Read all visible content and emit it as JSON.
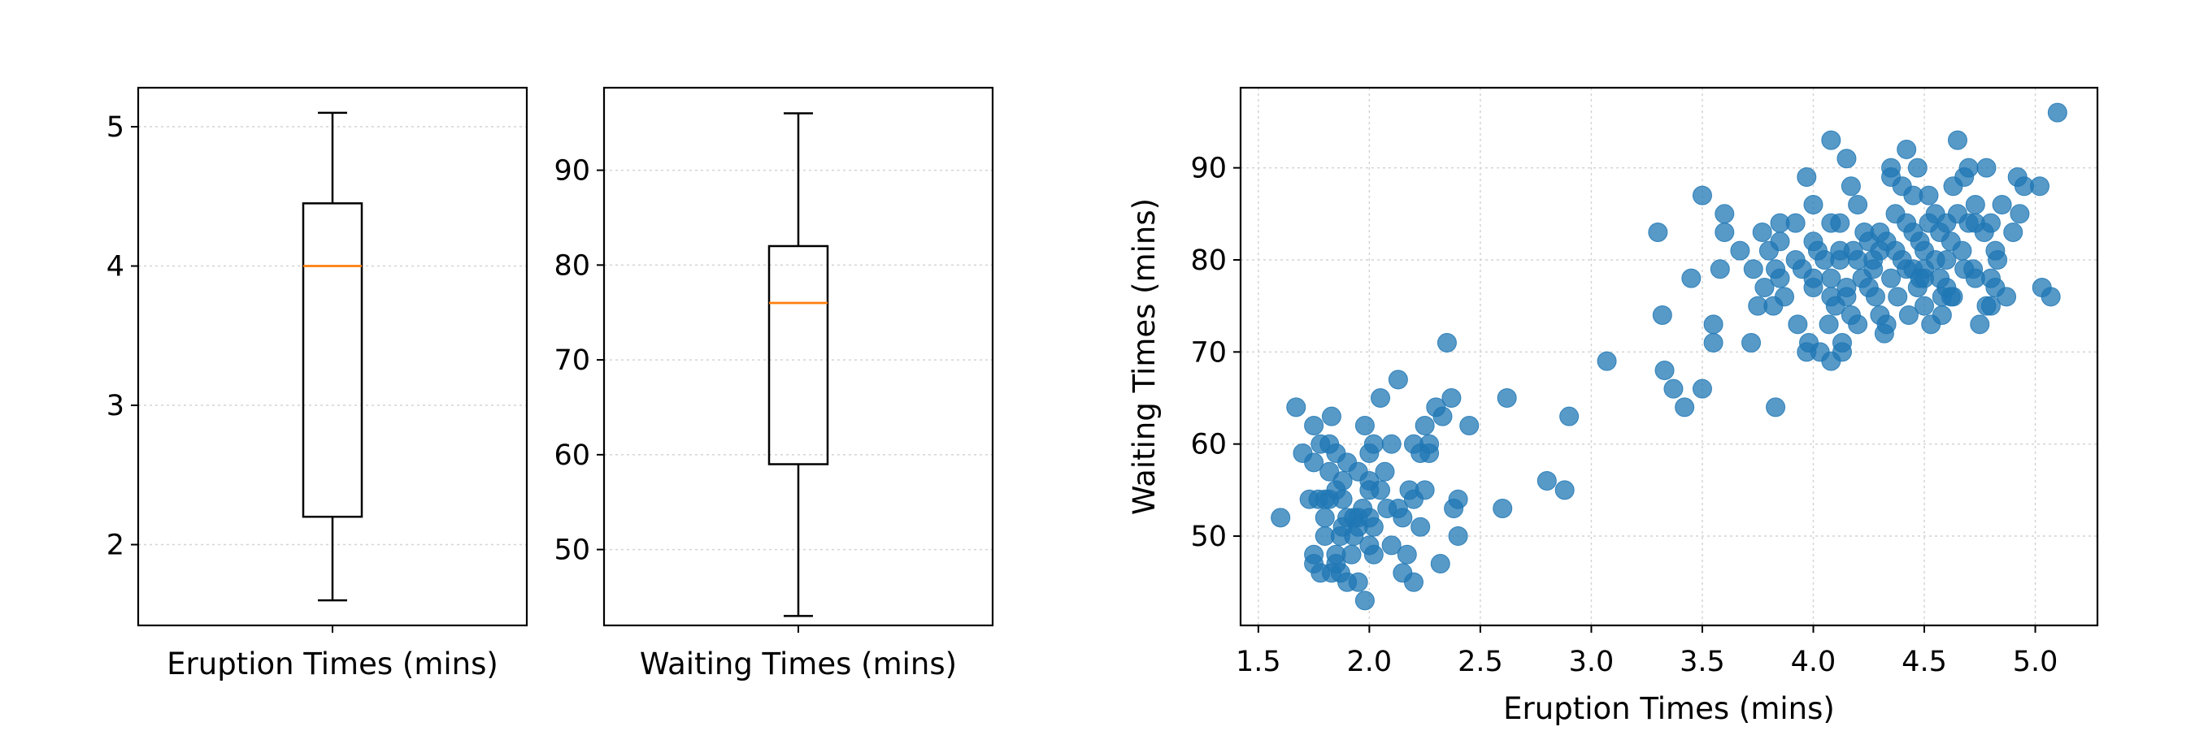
{
  "chart_data": [
    {
      "type": "box",
      "xlabel": "Eruption Times (mins)",
      "yticks": [
        2,
        3,
        4,
        5
      ],
      "ylim": [
        1.42,
        5.28
      ],
      "box": {
        "min": 1.6,
        "q1": 2.2,
        "median": 4.0,
        "q3": 4.45,
        "max": 5.1
      },
      "grid": true
    },
    {
      "type": "box",
      "xlabel": "Waiting Times (mins)",
      "yticks": [
        50,
        60,
        70,
        80,
        90
      ],
      "ylim": [
        42.0,
        98.7
      ],
      "box": {
        "min": 43,
        "q1": 59,
        "median": 76,
        "q3": 82,
        "max": 96
      },
      "grid": true
    },
    {
      "type": "scatter",
      "xlabel": "Eruption Times (mins)",
      "ylabel": "Waiting Times (mins)",
      "xticks": [
        1.5,
        2.0,
        2.5,
        3.0,
        3.5,
        4.0,
        4.5,
        5.0
      ],
      "yticks": [
        50,
        60,
        70,
        80,
        90
      ],
      "xlim": [
        1.42,
        5.28
      ],
      "ylim": [
        40.3,
        98.7
      ],
      "grid": true,
      "color": "#1f77b4",
      "points": [
        [
          1.6,
          52
        ],
        [
          1.67,
          64
        ],
        [
          1.7,
          59
        ],
        [
          1.73,
          54
        ],
        [
          1.75,
          62
        ],
        [
          1.75,
          58
        ],
        [
          1.75,
          48
        ],
        [
          1.75,
          47
        ],
        [
          1.77,
          54
        ],
        [
          1.78,
          46
        ],
        [
          1.8,
          52
        ],
        [
          1.8,
          50
        ],
        [
          1.82,
          60
        ],
        [
          1.82,
          57
        ],
        [
          1.82,
          54
        ],
        [
          1.83,
          46
        ],
        [
          1.83,
          63
        ],
        [
          1.85,
          59
        ],
        [
          1.85,
          55
        ],
        [
          1.85,
          48
        ],
        [
          1.85,
          47
        ],
        [
          1.87,
          50
        ],
        [
          1.87,
          46
        ],
        [
          1.88,
          51
        ],
        [
          1.88,
          54
        ],
        [
          1.9,
          45
        ],
        [
          1.9,
          52
        ],
        [
          1.9,
          58
        ],
        [
          1.92,
          48
        ],
        [
          1.93,
          50
        ],
        [
          1.95,
          52
        ],
        [
          1.95,
          45
        ],
        [
          1.97,
          53
        ],
        [
          1.98,
          62
        ],
        [
          1.98,
          43
        ],
        [
          2.0,
          59
        ],
        [
          2.0,
          56
        ],
        [
          2.0,
          55
        ],
        [
          2.0,
          52
        ],
        [
          2.0,
          49
        ],
        [
          2.02,
          60
        ],
        [
          2.02,
          51
        ],
        [
          2.05,
          65
        ],
        [
          2.07,
          57
        ],
        [
          2.08,
          53
        ],
        [
          2.1,
          60
        ],
        [
          2.1,
          49
        ],
        [
          2.13,
          67
        ],
        [
          2.15,
          52
        ],
        [
          2.15,
          46
        ],
        [
          2.17,
          48
        ],
        [
          2.18,
          55
        ],
        [
          2.2,
          60
        ],
        [
          2.2,
          54
        ],
        [
          2.2,
          45
        ],
        [
          2.23,
          59
        ],
        [
          2.23,
          51
        ],
        [
          2.25,
          62
        ],
        [
          2.25,
          55
        ],
        [
          2.27,
          59
        ],
        [
          2.3,
          64
        ],
        [
          2.32,
          47
        ],
        [
          2.33,
          63
        ],
        [
          2.35,
          71
        ],
        [
          2.37,
          65
        ],
        [
          2.38,
          53
        ],
        [
          2.4,
          54
        ],
        [
          2.4,
          50
        ],
        [
          2.45,
          62
        ],
        [
          2.6,
          53
        ],
        [
          2.62,
          65
        ],
        [
          2.8,
          56
        ],
        [
          2.88,
          55
        ],
        [
          2.9,
          63
        ],
        [
          3.07,
          69
        ],
        [
          3.3,
          83
        ],
        [
          3.32,
          74
        ],
        [
          3.33,
          68
        ],
        [
          3.37,
          66
        ],
        [
          3.42,
          64
        ],
        [
          3.45,
          78
        ],
        [
          3.5,
          87
        ],
        [
          3.5,
          66
        ],
        [
          3.55,
          73
        ],
        [
          3.55,
          71
        ],
        [
          3.58,
          79
        ],
        [
          3.6,
          85
        ],
        [
          3.6,
          83
        ],
        [
          3.67,
          81
        ],
        [
          3.72,
          71
        ],
        [
          3.73,
          79
        ],
        [
          3.75,
          75
        ],
        [
          3.77,
          83
        ],
        [
          3.78,
          77
        ],
        [
          3.8,
          81
        ],
        [
          3.82,
          75
        ],
        [
          3.83,
          64
        ],
        [
          3.83,
          79
        ],
        [
          3.85,
          84
        ],
        [
          3.85,
          78
        ],
        [
          3.87,
          76
        ],
        [
          3.92,
          84
        ],
        [
          3.93,
          73
        ],
        [
          3.95,
          79
        ],
        [
          3.97,
          89
        ],
        [
          3.97,
          70
        ],
        [
          3.98,
          71
        ],
        [
          4.0,
          86
        ],
        [
          4.0,
          82
        ],
        [
          4.0,
          78
        ],
        [
          4.0,
          77
        ],
        [
          4.02,
          81
        ],
        [
          4.03,
          70
        ],
        [
          4.05,
          80
        ],
        [
          4.07,
          73
        ],
        [
          4.08,
          93
        ],
        [
          4.08,
          84
        ],
        [
          4.08,
          76
        ],
        [
          4.08,
          69
        ],
        [
          4.1,
          75
        ],
        [
          4.12,
          84
        ],
        [
          4.12,
          80
        ],
        [
          4.13,
          71
        ],
        [
          4.13,
          70
        ],
        [
          4.15,
          91
        ],
        [
          4.15,
          77
        ],
        [
          4.17,
          88
        ],
        [
          4.17,
          74
        ],
        [
          4.18,
          81
        ],
        [
          4.2,
          86
        ],
        [
          4.2,
          80
        ],
        [
          4.22,
          78
        ],
        [
          4.23,
          83
        ],
        [
          4.25,
          77
        ],
        [
          4.27,
          79
        ],
        [
          4.28,
          76
        ],
        [
          4.3,
          81
        ],
        [
          4.3,
          74
        ],
        [
          4.32,
          72
        ],
        [
          4.33,
          82
        ],
        [
          4.33,
          73
        ],
        [
          4.35,
          90
        ],
        [
          4.35,
          89
        ],
        [
          4.37,
          85
        ],
        [
          4.37,
          81
        ],
        [
          4.38,
          76
        ],
        [
          4.4,
          88
        ],
        [
          4.4,
          80
        ],
        [
          4.42,
          92
        ],
        [
          4.42,
          79
        ],
        [
          4.43,
          74
        ],
        [
          4.45,
          87
        ],
        [
          4.45,
          83
        ],
        [
          4.47,
          90
        ],
        [
          4.47,
          77
        ],
        [
          4.48,
          82
        ],
        [
          4.5,
          75
        ],
        [
          4.5,
          81
        ],
        [
          4.5,
          79
        ],
        [
          4.52,
          84
        ],
        [
          4.53,
          73
        ],
        [
          4.55,
          85
        ],
        [
          4.55,
          80
        ],
        [
          4.57,
          78
        ],
        [
          4.58,
          74
        ],
        [
          4.6,
          84
        ],
        [
          4.6,
          77
        ],
        [
          4.62,
          82
        ],
        [
          4.63,
          88
        ],
        [
          4.63,
          76
        ],
        [
          4.65,
          93
        ],
        [
          4.65,
          85
        ],
        [
          4.67,
          81
        ],
        [
          4.68,
          89
        ],
        [
          4.7,
          90
        ],
        [
          4.72,
          79
        ],
        [
          4.73,
          84
        ],
        [
          4.73,
          78
        ],
        [
          4.75,
          73
        ],
        [
          4.77,
          83
        ],
        [
          4.78,
          75
        ],
        [
          4.78,
          90
        ],
        [
          4.8,
          75
        ],
        [
          4.8,
          84
        ],
        [
          4.8,
          78
        ],
        [
          4.82,
          81
        ],
        [
          4.82,
          77
        ],
        [
          4.83,
          80
        ],
        [
          4.85,
          86
        ],
        [
          4.87,
          76
        ],
        [
          4.9,
          83
        ],
        [
          4.92,
          89
        ],
        [
          4.93,
          85
        ],
        [
          4.95,
          88
        ],
        [
          5.02,
          88
        ],
        [
          5.03,
          77
        ],
        [
          5.07,
          76
        ],
        [
          5.1,
          96
        ],
        [
          4.58,
          76
        ],
        [
          4.5,
          78
        ],
        [
          4.45,
          79
        ],
        [
          4.25,
          82
        ],
        [
          4.12,
          81
        ],
        [
          3.92,
          80
        ],
        [
          3.85,
          82
        ],
        [
          4.27,
          80
        ],
        [
          4.3,
          83
        ],
        [
          4.57,
          83
        ],
        [
          4.6,
          80
        ],
        [
          4.7,
          84
        ],
        [
          2.13,
          53
        ],
        [
          1.95,
          57
        ],
        [
          1.8,
          54
        ],
        [
          1.78,
          60
        ],
        [
          2.05,
          55
        ],
        [
          1.88,
          56
        ],
        [
          1.93,
          52
        ],
        [
          2.27,
          60
        ],
        [
          2.02,
          48
        ],
        [
          1.95,
          51
        ],
        [
          4.68,
          79
        ],
        [
          4.42,
          84
        ],
        [
          4.15,
          76
        ],
        [
          4.52,
          87
        ],
        [
          4.73,
          86
        ],
        [
          4.2,
          73
        ],
        [
          4.48,
          78
        ],
        [
          4.62,
          76
        ],
        [
          4.35,
          78
        ],
        [
          4.08,
          78
        ]
      ]
    }
  ]
}
